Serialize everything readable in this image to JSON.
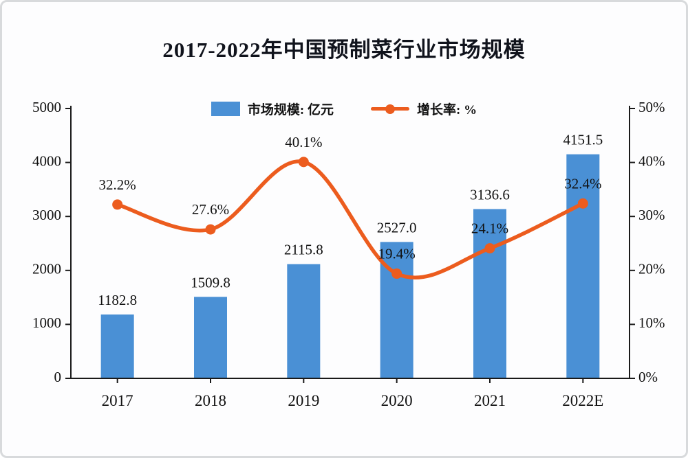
{
  "title": "2017-2022年中国预制菜行业市场规模",
  "legend": [
    {
      "label": "市场规模: 亿元",
      "type": "bar",
      "color": "#4a90d5"
    },
    {
      "label": "增长率: %",
      "type": "line",
      "color": "#ec5c1e"
    }
  ],
  "colors": {
    "bar": "#4a90d5",
    "line": "#ec5c1e",
    "axis": "#1a1a1a",
    "text": "#111111"
  },
  "chart_data": {
    "type": "bar",
    "subtype": "bar+line combo, dual axis",
    "title": "2017-2022年中国预制菜行业市场规模",
    "categories": [
      "2017",
      "2018",
      "2019",
      "2020",
      "2021",
      "2022E"
    ],
    "series": [
      {
        "name": "市场规模: 亿元",
        "type": "bar",
        "axis": "left",
        "color": "#4a90d5",
        "values": [
          1182.8,
          1509.8,
          2115.8,
          2527.0,
          3136.6,
          4151.5
        ],
        "labels": [
          "1182.8",
          "1509.8",
          "2115.8",
          "2527.0",
          "3136.6",
          "4151.5"
        ]
      },
      {
        "name": "增长率: %",
        "type": "line",
        "axis": "right",
        "color": "#ec5c1e",
        "values": [
          32.2,
          27.6,
          40.1,
          19.4,
          24.1,
          32.4
        ],
        "labels": [
          "32.2%",
          "27.6%",
          "40.1%",
          "19.4%",
          "24.1%",
          "32.4%"
        ]
      }
    ],
    "left_axis": {
      "min": 0,
      "max": 5000,
      "step": 1000,
      "ticks": [
        "0",
        "1000",
        "2000",
        "3000",
        "4000",
        "5000"
      ]
    },
    "right_axis": {
      "min": 0,
      "max": 50,
      "step": 10,
      "ticks": [
        "0%",
        "10%",
        "20%",
        "30%",
        "40%",
        "50%"
      ]
    },
    "grid": false,
    "legend_position": "top"
  }
}
